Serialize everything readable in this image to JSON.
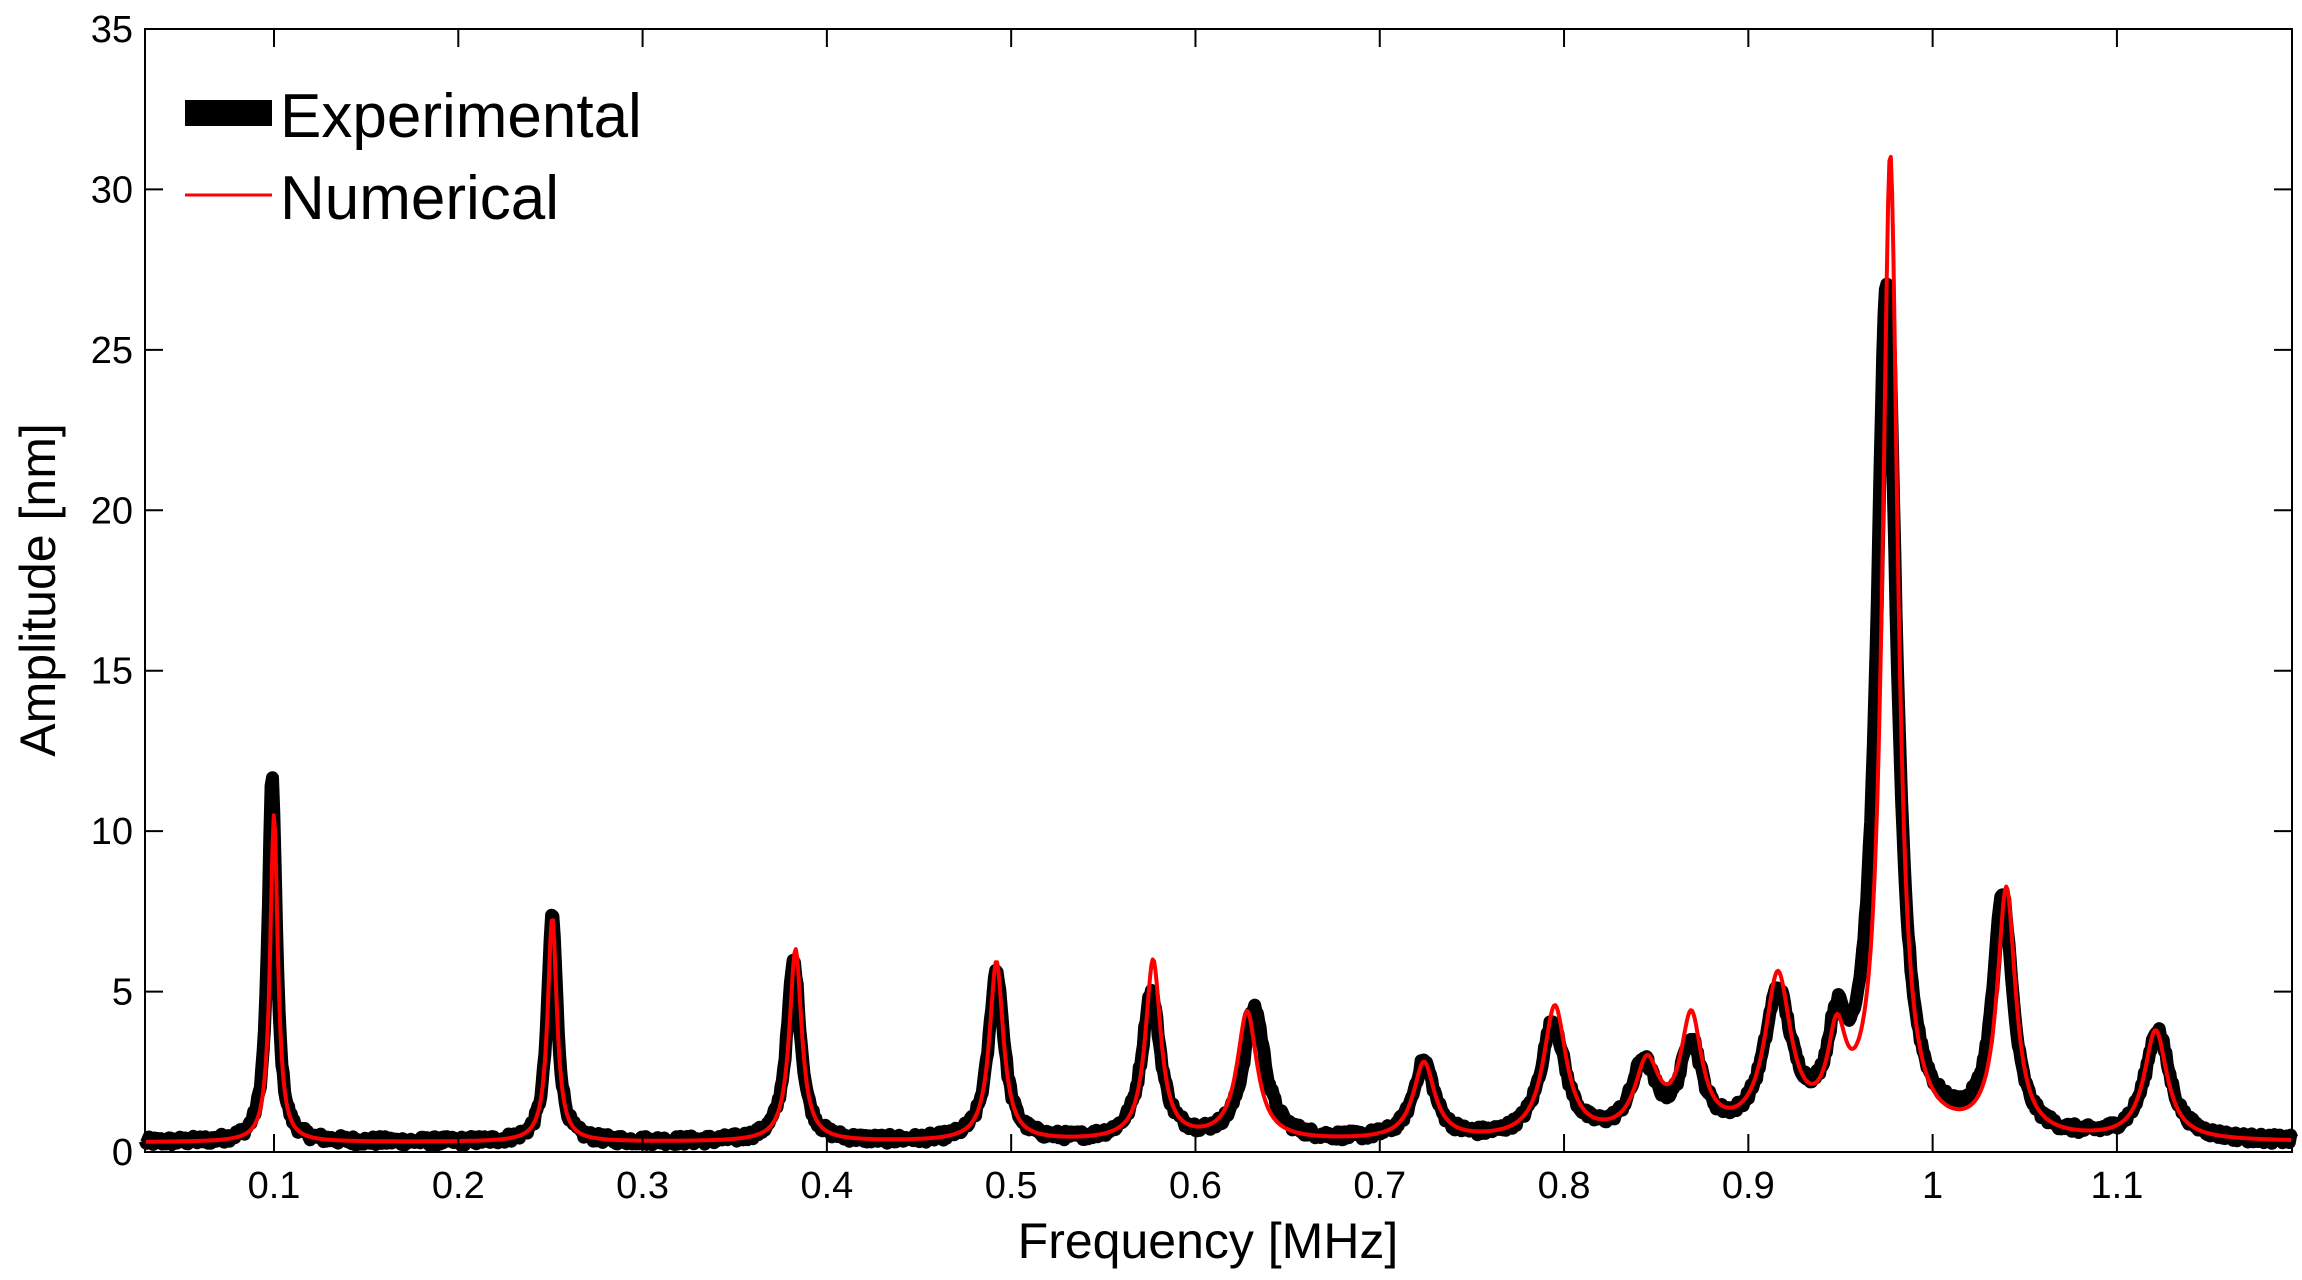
{
  "chart_data": {
    "type": "line",
    "title": "",
    "xlabel": "Frequency [MHz]",
    "ylabel": "Amplitude [nm]",
    "xlim": [
      0.03,
      1.195
    ],
    "ylim": [
      0,
      35
    ],
    "x_ticks": [
      "0.1",
      "0.2",
      "0.3",
      "0.4",
      "0.5",
      "0.6",
      "0.7",
      "0.8",
      "0.9",
      "1",
      "1.1"
    ],
    "y_ticks": [
      "0",
      "5",
      "10",
      "15",
      "20",
      "25",
      "30",
      "35"
    ],
    "grid": false,
    "legend_position": "top-left",
    "baseline": 0.3,
    "series": [
      {
        "name": "Experimental",
        "color": "#000000",
        "style": "thick",
        "noise": 0.28,
        "peaks": [
          {
            "f": 0.099,
            "amp": 11.4,
            "width": 0.0028
          },
          {
            "f": 0.251,
            "amp": 7.1,
            "width": 0.0032
          },
          {
            "f": 0.382,
            "amp": 5.6,
            "width": 0.0045
          },
          {
            "f": 0.492,
            "amp": 5.3,
            "width": 0.005
          },
          {
            "f": 0.576,
            "amp": 4.6,
            "width": 0.006
          },
          {
            "f": 0.632,
            "amp": 4.1,
            "width": 0.007
          },
          {
            "f": 0.724,
            "amp": 2.4,
            "width": 0.007
          },
          {
            "f": 0.794,
            "amp": 3.6,
            "width": 0.008
          },
          {
            "f": 0.843,
            "amp": 2.2,
            "width": 0.008
          },
          {
            "f": 0.869,
            "amp": 2.8,
            "width": 0.007
          },
          {
            "f": 0.916,
            "amp": 4.3,
            "width": 0.009
          },
          {
            "f": 0.948,
            "amp": 2.6,
            "width": 0.006
          },
          {
            "f": 0.975,
            "amp": 26.5,
            "width": 0.0065
          },
          {
            "f": 1.038,
            "amp": 7.4,
            "width": 0.0065
          },
          {
            "f": 1.122,
            "amp": 3.4,
            "width": 0.008
          }
        ]
      },
      {
        "name": "Numerical",
        "color": "#ff0000",
        "style": "thin",
        "noise": 0,
        "peaks": [
          {
            "f": 0.1,
            "amp": 10.2,
            "width": 0.0025
          },
          {
            "f": 0.251,
            "amp": 7.0,
            "width": 0.003
          },
          {
            "f": 0.383,
            "amp": 6.0,
            "width": 0.004
          },
          {
            "f": 0.492,
            "amp": 5.6,
            "width": 0.0045
          },
          {
            "f": 0.577,
            "amp": 5.6,
            "width": 0.005
          },
          {
            "f": 0.628,
            "amp": 4.0,
            "width": 0.0065
          },
          {
            "f": 0.724,
            "amp": 2.4,
            "width": 0.007
          },
          {
            "f": 0.795,
            "amp": 4.1,
            "width": 0.0075
          },
          {
            "f": 0.845,
            "amp": 2.2,
            "width": 0.008
          },
          {
            "f": 0.869,
            "amp": 3.6,
            "width": 0.007
          },
          {
            "f": 0.916,
            "amp": 4.9,
            "width": 0.0085
          },
          {
            "f": 0.948,
            "amp": 2.7,
            "width": 0.006
          },
          {
            "f": 0.977,
            "amp": 30.5,
            "width": 0.005
          },
          {
            "f": 1.04,
            "amp": 7.7,
            "width": 0.006
          },
          {
            "f": 1.121,
            "amp": 3.4,
            "width": 0.0075
          }
        ]
      }
    ]
  }
}
